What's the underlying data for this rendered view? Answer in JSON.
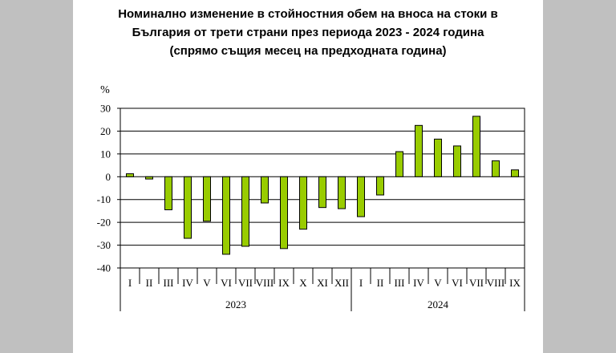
{
  "chart_data": {
    "type": "bar",
    "title_lines": [
      "Номинално изменение в стойностния обем на вноса на стоки в",
      "България от трети страни през периода 2023 - 2024 година",
      "(спрямо същия месец на предходната година)"
    ],
    "ylabel": "%",
    "ylim": [
      -40,
      30
    ],
    "yticks": [
      30,
      20,
      10,
      0,
      -10,
      -20,
      -30,
      -40
    ],
    "grid": true,
    "categories": [
      "I",
      "II",
      "III",
      "IV",
      "V",
      "VI",
      "VII",
      "VIII",
      "IX",
      "X",
      "XI",
      "XII",
      "I",
      "II",
      "III",
      "IV",
      "V",
      "VI",
      "VII",
      "VIII",
      "IX"
    ],
    "groups": [
      {
        "label": "2023",
        "count": 12
      },
      {
        "label": "2024",
        "count": 9
      }
    ],
    "values": [
      1.3,
      -1.0,
      -14.5,
      -27.0,
      -19.5,
      -34.0,
      -30.5,
      -11.5,
      -31.5,
      -23.0,
      -13.5,
      -14.0,
      -17.5,
      -8.0,
      11.0,
      22.5,
      16.5,
      13.5,
      26.5,
      7.0,
      3.0
    ],
    "bar_color": "#99cc00"
  }
}
